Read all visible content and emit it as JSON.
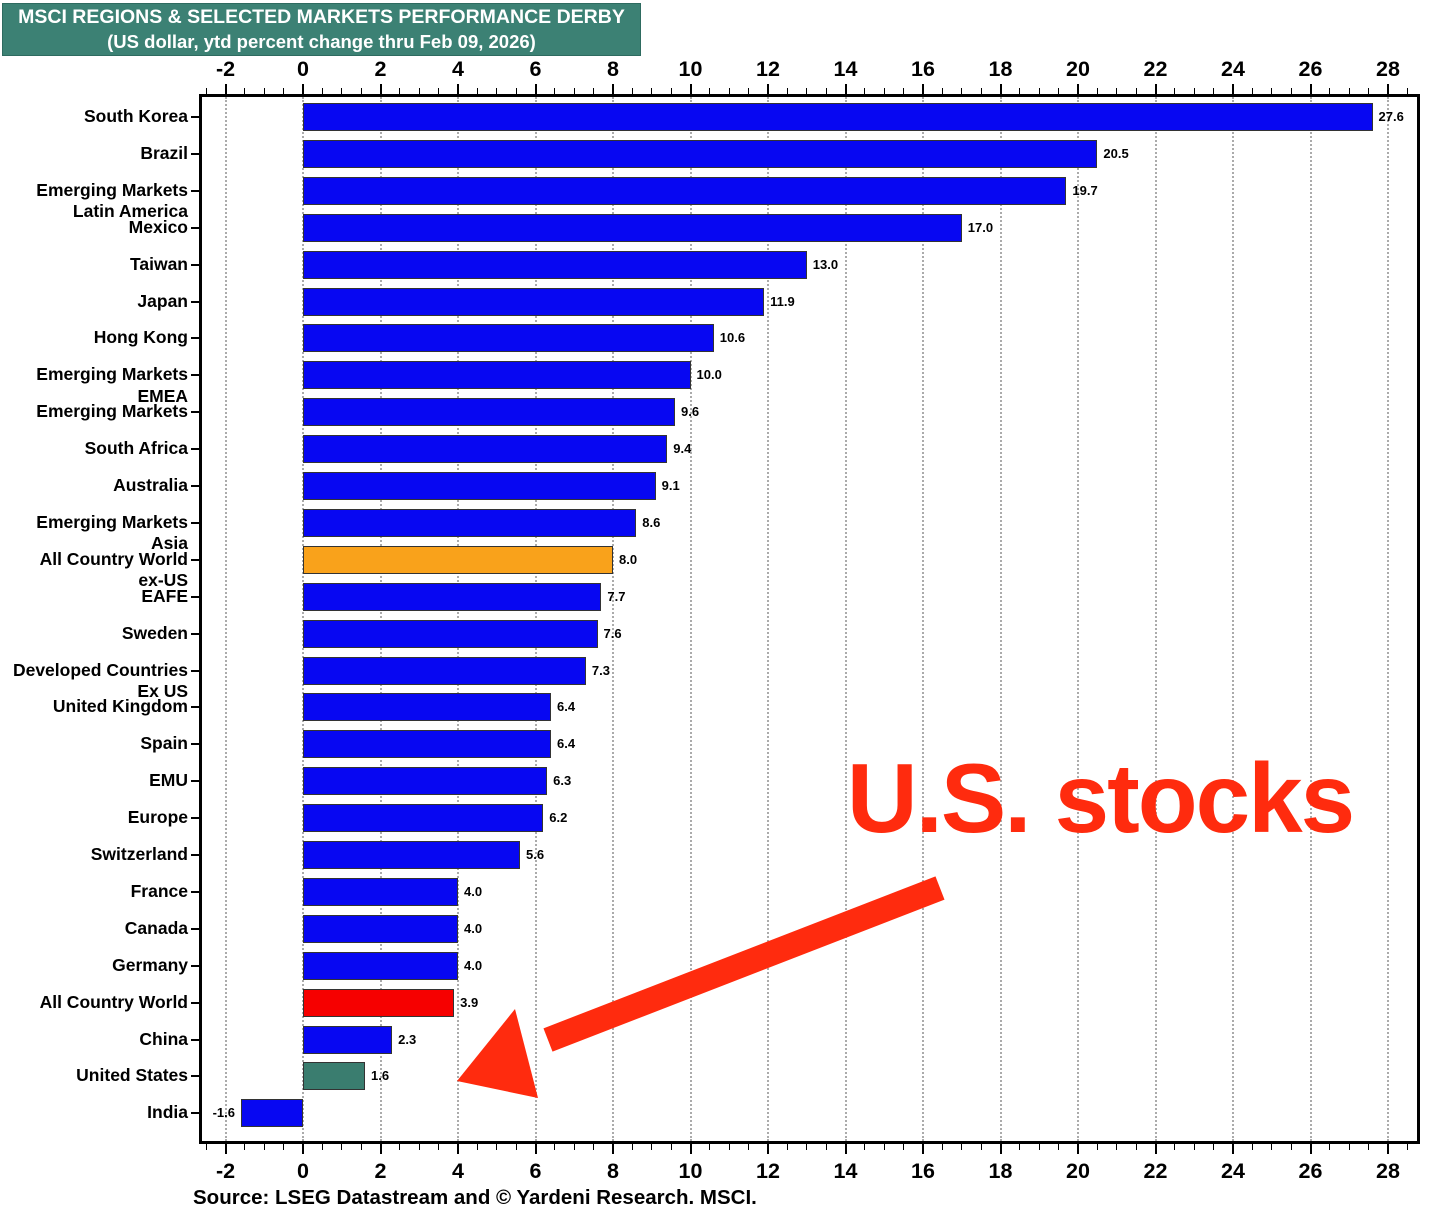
{
  "header": {
    "title": "MSCI REGIONS & SELECTED MARKETS PERFORMANCE DERBY",
    "subtitle": "(US dollar, ytd percent change thru Feb 09, 2026)",
    "bg_color": "#3C8174",
    "text_color": "#FFFFFF"
  },
  "annotation": {
    "label": "U.S. stocks",
    "color": "#FF2B0E"
  },
  "source_text": "Source: LSEG Datastream and © Yardeni Research. MSCI.",
  "chart_data": {
    "type": "bar",
    "orientation": "horizontal",
    "title": "MSCI REGIONS & SELECTED MARKETS PERFORMANCE DERBY",
    "subtitle": "(US dollar, ytd percent change thru Feb 09, 2026)",
    "xlim": [
      -2.6,
      28.8
    ],
    "xticks": [
      -2,
      0,
      2,
      4,
      6,
      8,
      10,
      12,
      14,
      16,
      18,
      20,
      22,
      24,
      26,
      28
    ],
    "minor_tick_step": 0.5,
    "grid": "vertical-dotted-every-2",
    "value_format": "one-decimal",
    "palette": {
      "default": "#0707F2",
      "highlight_orange": "#F9A21B",
      "highlight_red": "#F60000",
      "highlight_teal": "#3A7D6F",
      "bar_border": "#333333"
    },
    "bars": [
      {
        "label": [
          "South Korea"
        ],
        "value": 27.6,
        "color": "default"
      },
      {
        "label": [
          "Brazil"
        ],
        "value": 20.5,
        "color": "default"
      },
      {
        "label": [
          "Emerging Markets",
          "Latin America"
        ],
        "value": 19.7,
        "color": "default"
      },
      {
        "label": [
          "Mexico"
        ],
        "value": 17.0,
        "color": "default"
      },
      {
        "label": [
          "Taiwan"
        ],
        "value": 13.0,
        "color": "default"
      },
      {
        "label": [
          "Japan"
        ],
        "value": 11.9,
        "color": "default"
      },
      {
        "label": [
          "Hong Kong"
        ],
        "value": 10.6,
        "color": "default"
      },
      {
        "label": [
          "Emerging Markets",
          "EMEA"
        ],
        "value": 10.0,
        "color": "default"
      },
      {
        "label": [
          "Emerging Markets"
        ],
        "value": 9.6,
        "color": "default"
      },
      {
        "label": [
          "South Africa"
        ],
        "value": 9.4,
        "color": "default"
      },
      {
        "label": [
          "Australia"
        ],
        "value": 9.1,
        "color": "default"
      },
      {
        "label": [
          "Emerging Markets",
          "Asia"
        ],
        "value": 8.6,
        "color": "default"
      },
      {
        "label": [
          "All Country World",
          "ex-US"
        ],
        "value": 8.0,
        "color": "highlight_orange"
      },
      {
        "label": [
          "EAFE"
        ],
        "value": 7.7,
        "color": "default"
      },
      {
        "label": [
          "Sweden"
        ],
        "value": 7.6,
        "color": "default"
      },
      {
        "label": [
          "Developed Countries",
          "Ex US"
        ],
        "value": 7.3,
        "color": "default"
      },
      {
        "label": [
          "United Kingdom"
        ],
        "value": 6.4,
        "color": "default"
      },
      {
        "label": [
          "Spain"
        ],
        "value": 6.4,
        "color": "default"
      },
      {
        "label": [
          "EMU"
        ],
        "value": 6.3,
        "color": "default"
      },
      {
        "label": [
          "Europe"
        ],
        "value": 6.2,
        "color": "default"
      },
      {
        "label": [
          "Switzerland"
        ],
        "value": 5.6,
        "color": "default"
      },
      {
        "label": [
          "France"
        ],
        "value": 4.0,
        "color": "default"
      },
      {
        "label": [
          "Canada"
        ],
        "value": 4.0,
        "color": "default"
      },
      {
        "label": [
          "Germany"
        ],
        "value": 4.0,
        "color": "default"
      },
      {
        "label": [
          "All Country World"
        ],
        "value": 3.9,
        "color": "highlight_red"
      },
      {
        "label": [
          "China"
        ],
        "value": 2.3,
        "color": "default"
      },
      {
        "label": [
          "United States"
        ],
        "value": 1.6,
        "color": "highlight_teal"
      },
      {
        "label": [
          "India"
        ],
        "value": -1.6,
        "color": "default"
      }
    ]
  }
}
